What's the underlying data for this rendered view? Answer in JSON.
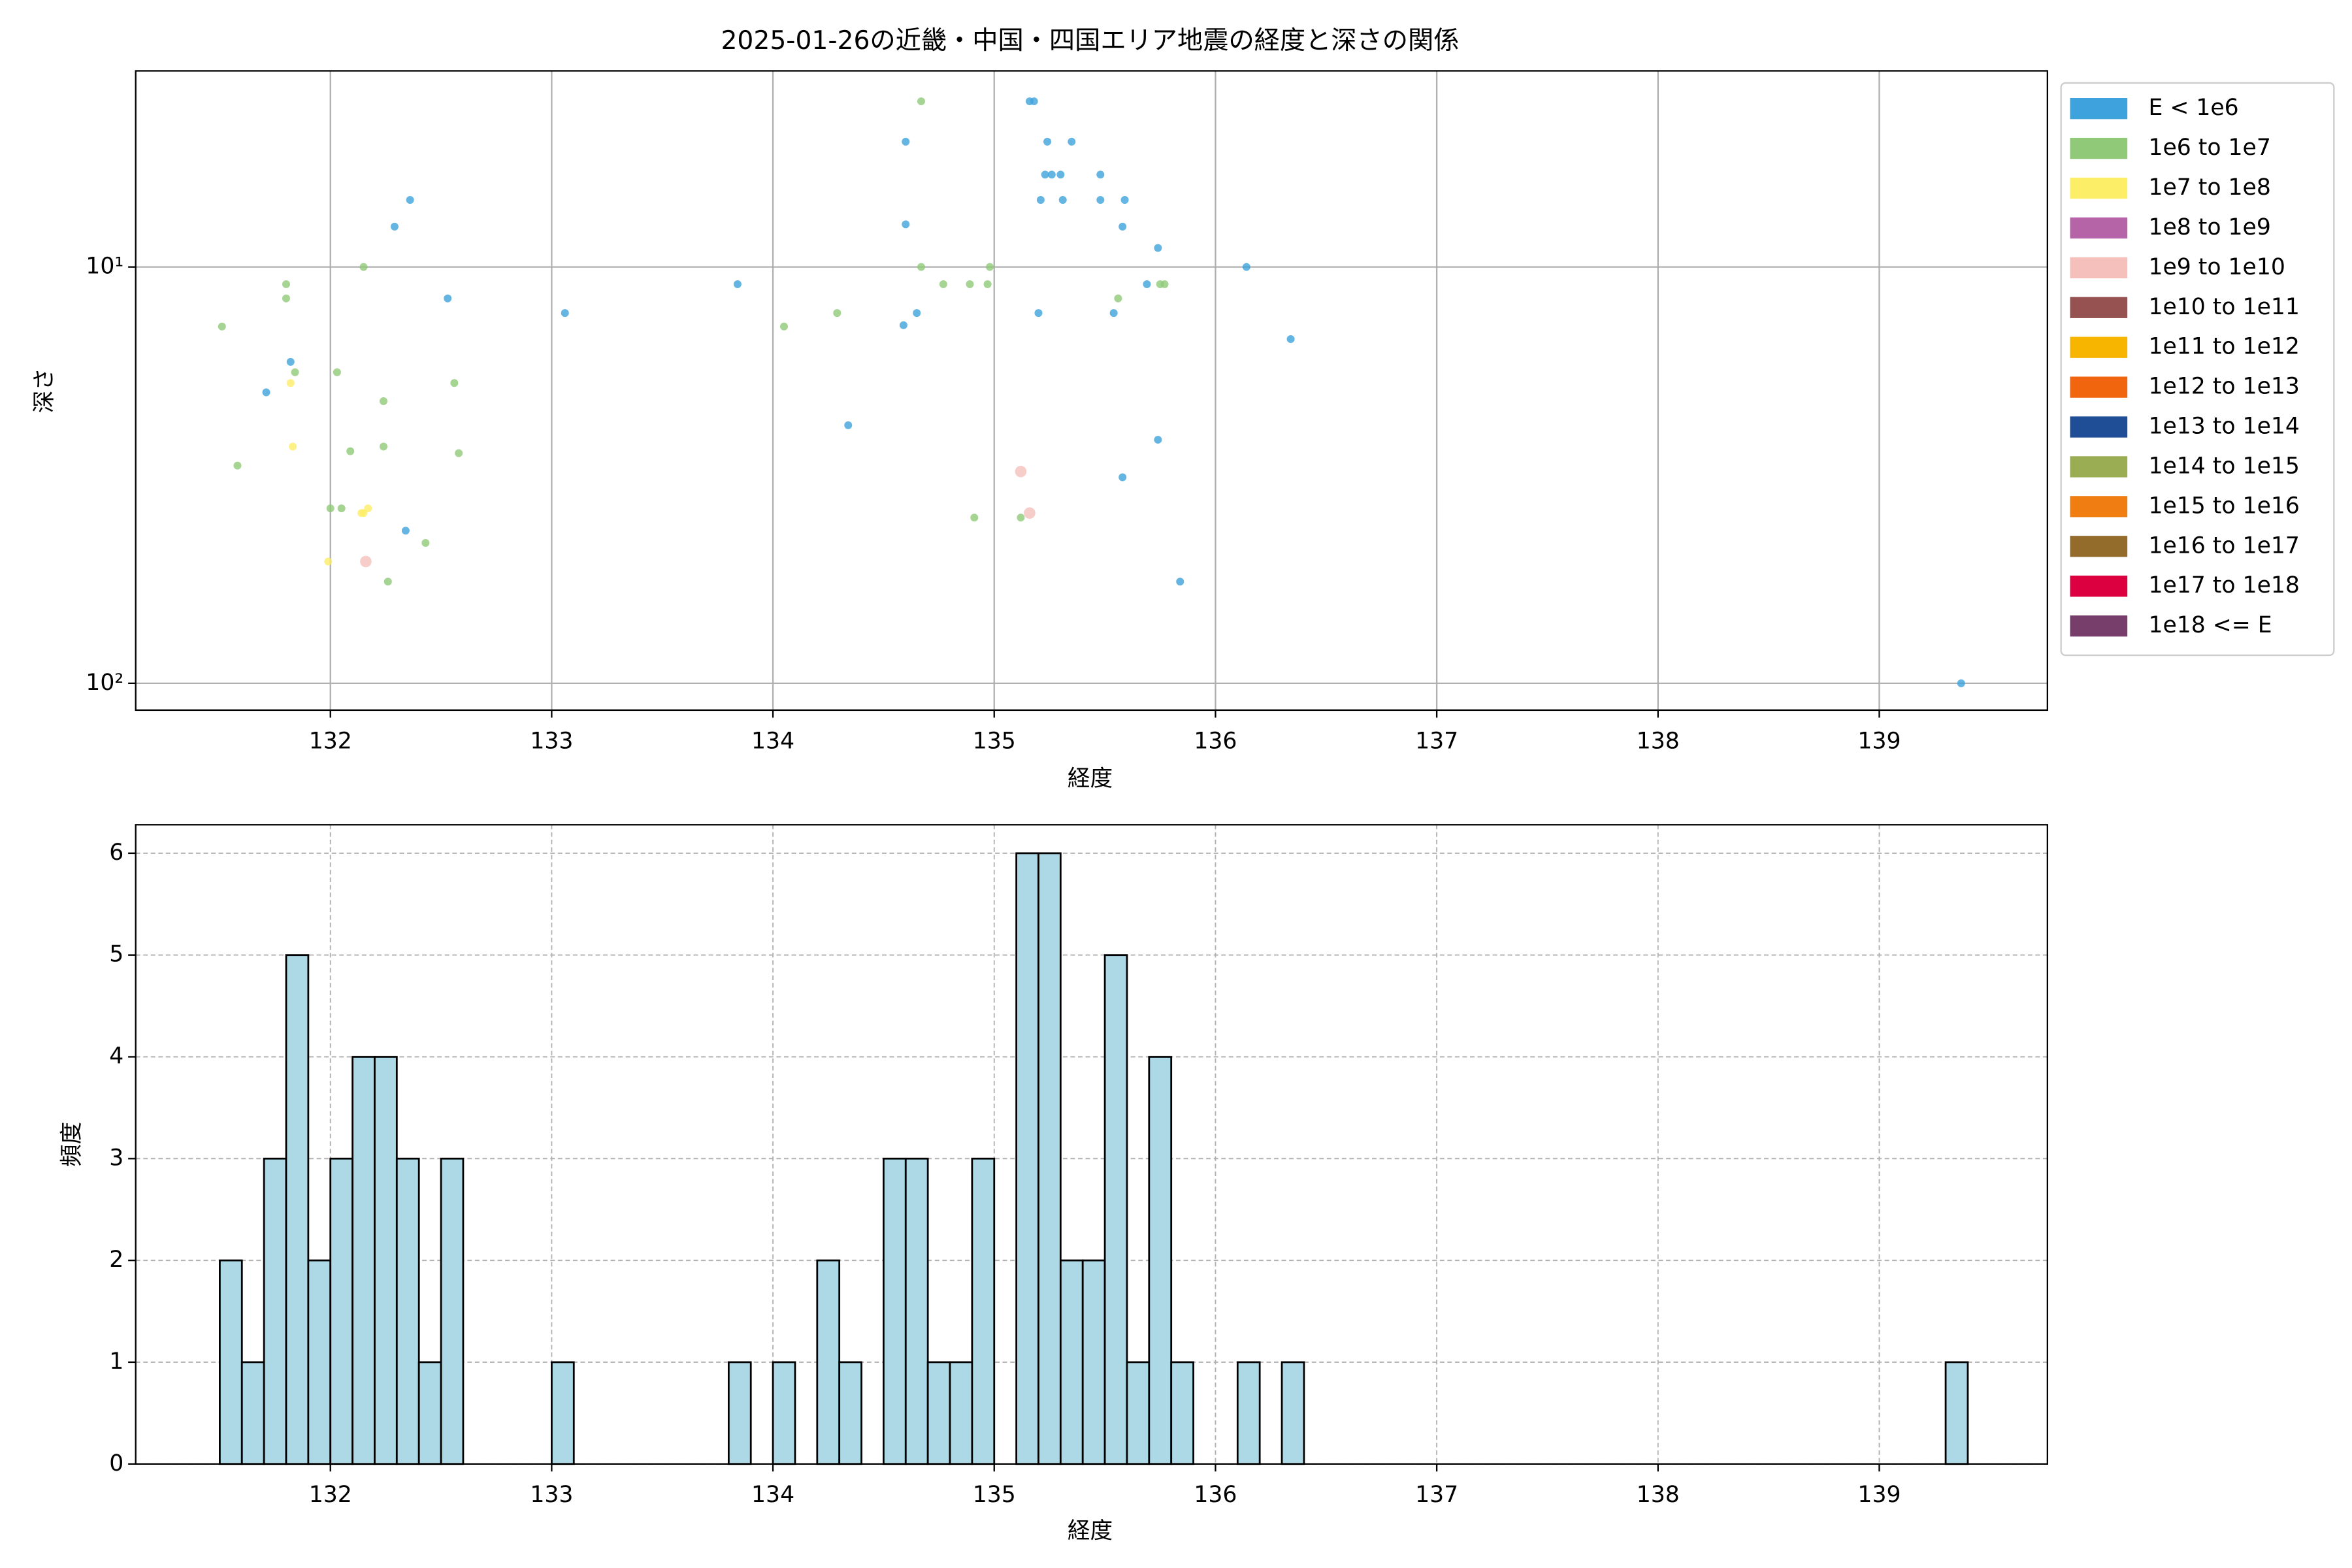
{
  "chart_data": [
    {
      "type": "scatter",
      "title": "2025-01-26の近畿・中国・四国エリア地震の経度と深さの関係",
      "xlabel": "経度",
      "ylabel": "深さ",
      "xlim": [
        131.12,
        139.76
      ],
      "xticks": [
        132,
        133,
        134,
        135,
        136,
        137,
        138,
        139
      ],
      "ylim": [
        3.38,
        116
      ],
      "yticks": [
        {
          "value": 10,
          "label": "10¹"
        },
        {
          "value": 100,
          "label": "10²"
        }
      ],
      "ylog": true,
      "y_inverted": true,
      "grid": true,
      "legend": "outside upper right",
      "series": [
        {
          "name": "E < 1e6",
          "color": "#3ea3dc",
          "x": [
            132.36,
            132.29,
            132.53,
            131.82,
            131.71,
            132.34,
            133.06,
            133.84,
            134.34,
            134.6,
            134.6,
            134.59,
            134.65,
            135.16,
            135.18,
            135.24,
            135.35,
            135.23,
            135.26,
            135.3,
            135.48,
            135.21,
            135.31,
            135.48,
            135.59,
            135.58,
            135.74,
            135.2,
            135.54,
            135.69,
            136.14,
            136.34,
            135.74,
            135.58,
            135.84,
            139.37
          ],
          "values": [
            6.9,
            8.0,
            11.9,
            16.9,
            20.0,
            43,
            12.9,
            11.0,
            24,
            5.0,
            7.9,
            13.8,
            12.9,
            4.0,
            4.0,
            5.0,
            5.0,
            6.0,
            6.0,
            6.0,
            6.0,
            6.9,
            6.9,
            6.9,
            6.9,
            8.0,
            9.0,
            12.9,
            12.9,
            11.0,
            10,
            14.9,
            26,
            32,
            57,
            100
          ]
        },
        {
          "name": "1e6 to 1e7",
          "color": "#90c978",
          "x": [
            134.67,
            131.51,
            131.8,
            131.8,
            132.15,
            131.84,
            132.03,
            132.24,
            132.56,
            131.58,
            132.09,
            132.24,
            132.58,
            132.0,
            132.05,
            132.43,
            132.26,
            134.05,
            134.29,
            134.67,
            134.77,
            134.89,
            134.97,
            134.98,
            134.91,
            135.12,
            135.56,
            135.75,
            135.77
          ],
          "values": [
            4.0,
            13.9,
            11.0,
            11.9,
            10,
            17.9,
            17.9,
            21,
            19,
            30,
            27.7,
            27,
            28,
            38,
            38,
            46,
            57,
            13.9,
            12.9,
            10,
            11,
            11,
            11,
            10,
            40,
            40,
            11.9,
            11,
            11
          ]
        },
        {
          "name": "1e7 to 1e8",
          "color": "#fdee67",
          "x": [
            131.82,
            131.83,
            131.99,
            132.15,
            132.17,
            132.14
          ],
          "values": [
            19,
            27,
            51,
            39,
            38,
            39
          ]
        },
        {
          "name": "1e8 to 1e9",
          "color": "#b565a7",
          "x": [],
          "values": []
        },
        {
          "name": "1e9 to 1e10",
          "color": "#f5c0bb",
          "x": [
            132.16,
            135.12,
            135.16
          ],
          "values": [
            51,
            31,
            39
          ]
        },
        {
          "name": "1e10 to 1e11",
          "color": "#955251",
          "x": [],
          "values": []
        },
        {
          "name": "1e11 to 1e12",
          "color": "#f7b500",
          "x": [],
          "values": []
        },
        {
          "name": "1e12 to 1e13",
          "color": "#f0650e",
          "x": [],
          "values": []
        },
        {
          "name": "1e13 to 1e14",
          "color": "#1f4e96",
          "x": [],
          "values": []
        },
        {
          "name": "1e14 to 1e15",
          "color": "#9bad52",
          "x": [],
          "values": []
        },
        {
          "name": "1e15 to 1e16",
          "color": "#ef7d12",
          "x": [],
          "values": []
        },
        {
          "name": "1e16 to 1e17",
          "color": "#936b2b",
          "x": [],
          "values": []
        },
        {
          "name": "1e17 to 1e18",
          "color": "#dd0041",
          "x": [],
          "values": []
        },
        {
          "name": "1e18 <= E",
          "color": "#773e6c",
          "x": [],
          "values": []
        }
      ]
    },
    {
      "type": "histogram",
      "xlabel": "経度",
      "ylabel": "頻度",
      "color": "#add8e6",
      "edgecolor": "#000000",
      "xlim": [
        131.12,
        139.76
      ],
      "xticks": [
        132,
        133,
        134,
        135,
        136,
        137,
        138,
        139
      ],
      "ylim": [
        0,
        6.28
      ],
      "yticks": [
        0,
        1,
        2,
        3,
        4,
        5,
        6
      ],
      "grid": true,
      "bins": [
        131.5,
        131.6,
        131.7,
        131.8,
        131.9,
        132.0,
        132.1,
        132.2,
        132.3,
        132.4,
        132.5,
        132.6,
        132.7,
        132.8,
        132.9,
        133.0,
        133.1,
        133.2,
        133.3,
        133.4,
        133.5,
        133.6,
        133.7,
        133.8,
        133.9,
        134.0,
        134.1,
        134.2,
        134.3,
        134.4,
        134.5,
        134.6,
        134.7,
        134.8,
        134.9,
        135.0,
        135.1,
        135.2,
        135.3,
        135.4,
        135.5,
        135.6,
        135.7,
        135.8,
        135.9,
        136.0,
        136.1,
        136.2,
        136.3,
        136.4,
        136.5,
        136.6,
        136.7,
        136.8,
        136.9,
        137.0,
        137.1,
        137.2,
        137.3,
        137.4,
        137.5,
        137.6,
        137.7,
        137.8,
        137.9,
        138.0,
        138.1,
        138.2,
        138.3,
        138.4,
        138.5,
        138.6,
        138.7,
        138.8,
        138.9,
        139.0,
        139.1,
        139.2,
        139.3,
        139.4
      ],
      "counts": [
        2,
        1,
        3,
        5,
        2,
        3,
        4,
        4,
        3,
        1,
        3,
        0,
        0,
        0,
        0,
        1,
        0,
        0,
        0,
        0,
        0,
        0,
        0,
        1,
        0,
        1,
        0,
        2,
        1,
        0,
        3,
        3,
        1,
        1,
        3,
        0,
        6,
        6,
        2,
        2,
        5,
        1,
        4,
        1,
        0,
        0,
        1,
        0,
        1,
        0,
        0,
        0,
        0,
        0,
        0,
        0,
        0,
        0,
        0,
        0,
        0,
        0,
        0,
        0,
        0,
        0,
        0,
        0,
        0,
        0,
        0,
        0,
        0,
        0,
        0,
        0,
        0,
        0,
        1
      ]
    }
  ]
}
